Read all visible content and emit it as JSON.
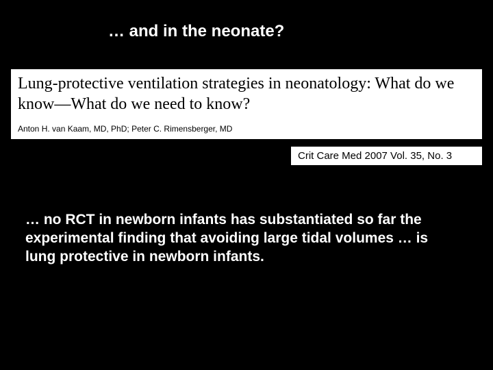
{
  "slide": {
    "title": "… and in the neonate?",
    "background_color": "#000000",
    "title_color": "#ffffff",
    "title_fontsize": 24
  },
  "paper": {
    "title": "Lung-protective ventilation strategies in neonatology: What do we know—What do we need to know?",
    "authors": "Anton H. van Kaam, MD, PhD; Peter C. Rimensberger, MD",
    "citation": "Crit Care Med 2007 Vol. 35, No. 3",
    "background_color": "#ffffff",
    "title_fontsize": 24,
    "authors_fontsize": 12,
    "citation_fontsize": 15
  },
  "body": {
    "text": "… no RCT in newborn infants has substantiated so far the experimental finding that avoiding large tidal volumes … is lung protective in newborn infants.",
    "color": "#ffffff",
    "fontsize": 21
  }
}
